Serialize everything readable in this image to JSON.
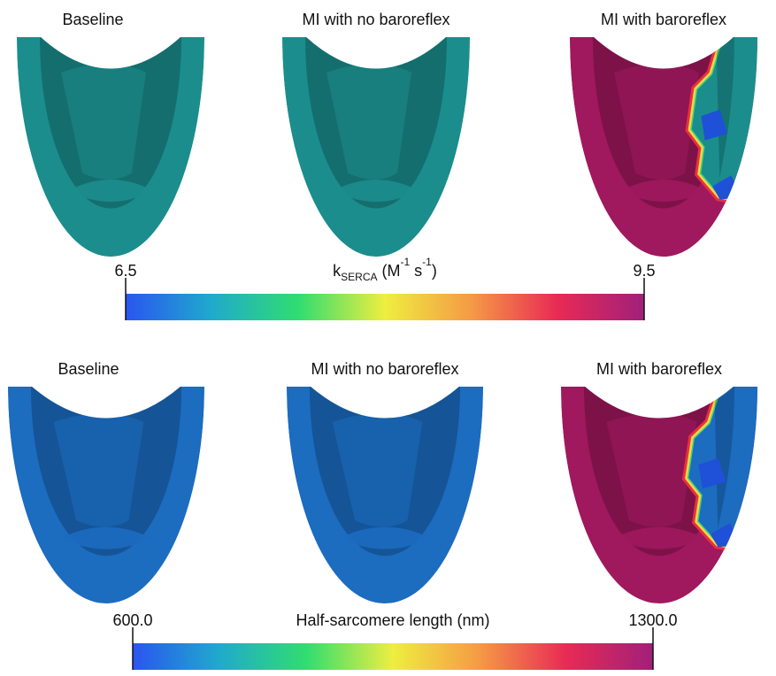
{
  "rows": [
    {
      "panels": [
        {
          "title": "Baseline",
          "color": "#1b8d8d"
        },
        {
          "title": "MI with no baroreflex",
          "color": "#1b8d8d"
        },
        {
          "title": "MI with baroreflex",
          "color": "#a0185e",
          "region_color": "#1b8d8d"
        }
      ],
      "colorbar": {
        "label": [
          {
            "text": "k"
          },
          {
            "text": "SERCA",
            "style": "sub"
          },
          {
            "text": " (M"
          },
          {
            "text": "-1",
            "style": "sup"
          },
          {
            "text": " s"
          },
          {
            "text": "-1",
            "style": "sup"
          },
          {
            "text": ")"
          }
        ],
        "min": 6.5,
        "max": 9.5,
        "colors": [
          "#2a55f0",
          "#20aacc",
          "#30dd70",
          "#eeee40",
          "#f59a45",
          "#e82a55",
          "#a0207a"
        ]
      }
    },
    {
      "panels": [
        {
          "title": "Baseline",
          "color": "#1c6cc0"
        },
        {
          "title": "MI with no baroreflex",
          "color": "#1c6cc0"
        },
        {
          "title": "MI with baroreflex",
          "color": "#a0185e",
          "region_color": "#1c6cc0"
        }
      ],
      "colorbar": {
        "label": [
          {
            "text": "Half-sarcomere length (nm)"
          }
        ],
        "min": {
          "value": 600,
          "label": "600.0"
        },
        "max": {
          "value": 1300,
          "label": "1300.0"
        },
        "colors": [
          "#2a55f0",
          "#20aacc",
          "#30dd70",
          "#eeee40",
          "#f59a45",
          "#e82a55",
          "#a0207a"
        ]
      }
    }
  ]
}
